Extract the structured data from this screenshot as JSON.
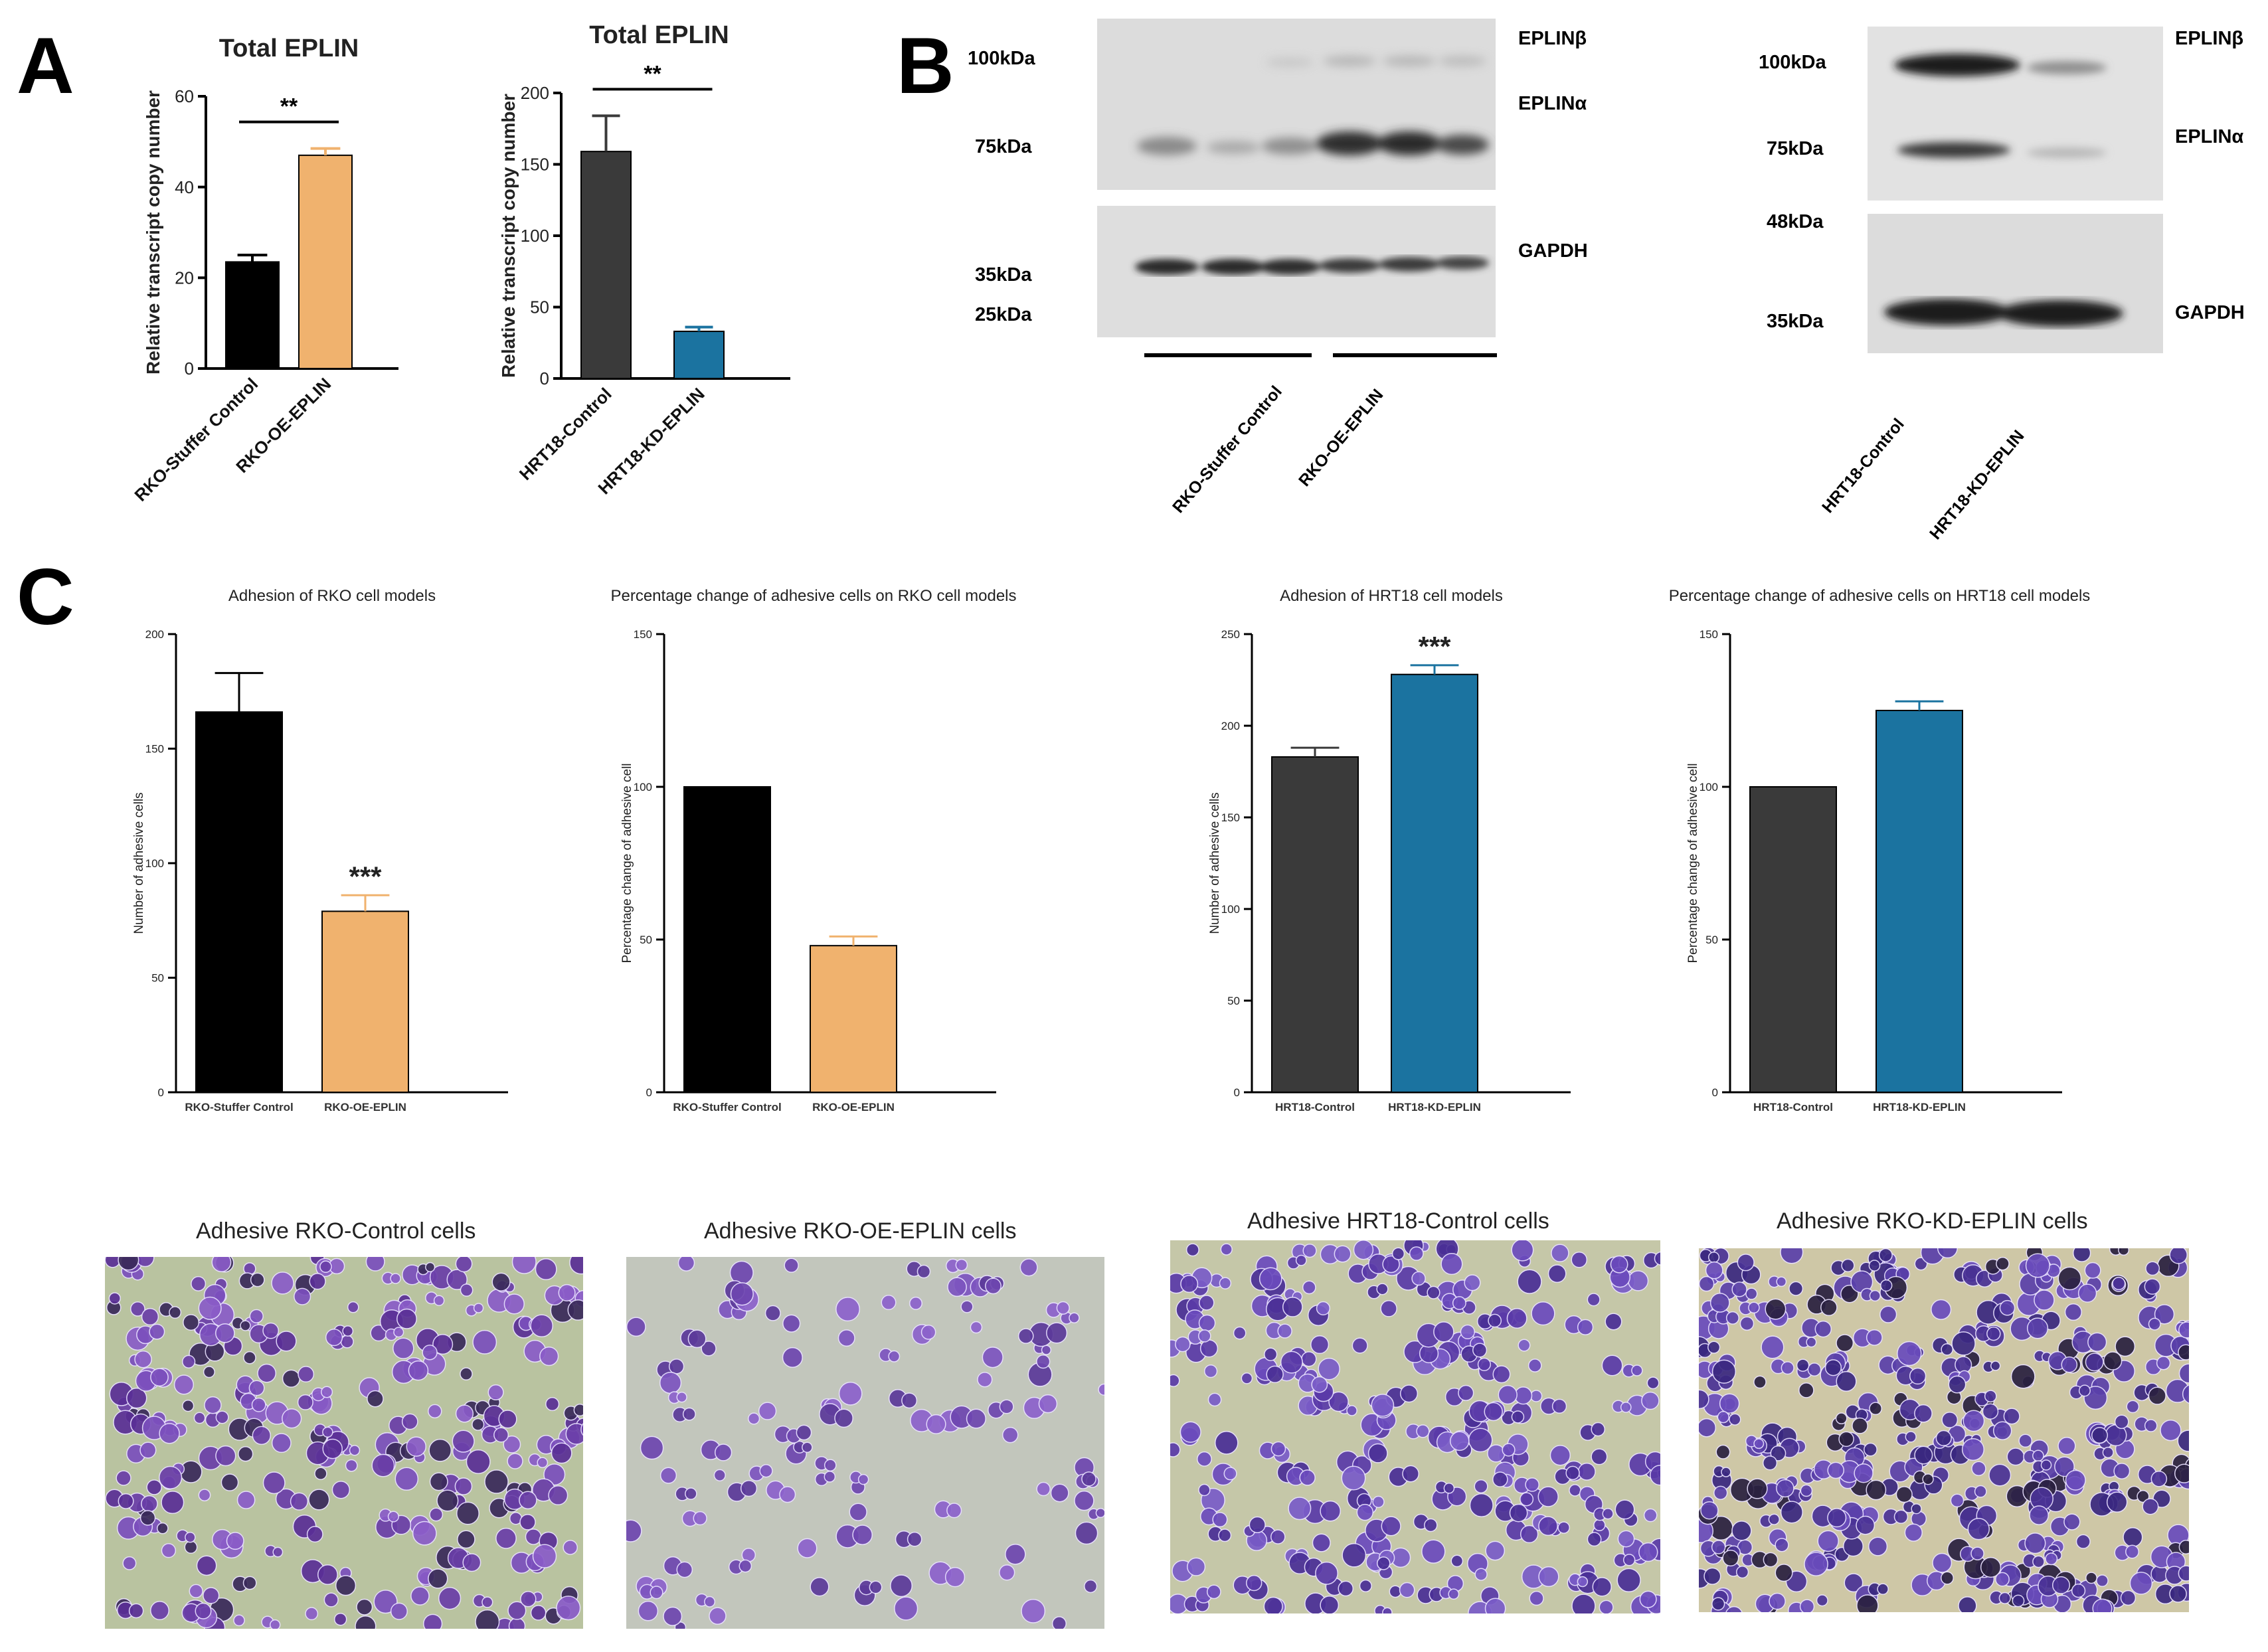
{
  "panels": {
    "a": "A",
    "b": "B",
    "c": "C"
  },
  "colors": {
    "black": "#000000",
    "orange": "#f0b26e",
    "dark_grey": "#3a3a3a",
    "teal": "#1b73a0"
  },
  "chart_data": [
    {
      "id": "a1",
      "type": "bar",
      "title": "Total EPLIN",
      "ylabel": "Relative transcript copy number",
      "categories": [
        "RKO-Stuffer Control",
        "RKO-OE-EPLIN"
      ],
      "values": [
        23.5,
        47
      ],
      "errors": [
        1.5,
        1.5
      ],
      "colors": [
        "#000000",
        "#f0b26e"
      ],
      "ylim": [
        0,
        60
      ],
      "yticks": [
        "0",
        "20",
        "40",
        "60"
      ],
      "significance": "**"
    },
    {
      "id": "a2",
      "type": "bar",
      "title": "Total EPLIN",
      "ylabel": "Relative transcript copy number",
      "categories": [
        "HRT18-Control",
        "HRT18-KD-EPLIN"
      ],
      "values": [
        159,
        33
      ],
      "errors": [
        25,
        3
      ],
      "colors": [
        "#3a3a3a",
        "#1b73a0"
      ],
      "ylim": [
        0,
        200
      ],
      "yticks": [
        "0",
        "50",
        "100",
        "150",
        "200"
      ],
      "significance": "**"
    },
    {
      "id": "c1",
      "type": "bar",
      "title": "Adhesion of RKO cell models",
      "ylabel": "Number of adhesive cells",
      "categories": [
        "RKO-Stuffer Control",
        "RKO-OE-EPLIN"
      ],
      "values": [
        166,
        79
      ],
      "errors": [
        17,
        7
      ],
      "colors": [
        "#000000",
        "#f0b26e"
      ],
      "ylim": [
        0,
        200
      ],
      "yticks": [
        "0",
        "50",
        "100",
        "150",
        "200"
      ],
      "stars": [
        "",
        "***"
      ]
    },
    {
      "id": "c2",
      "type": "bar",
      "title": "Percentage change of adhesive cells on RKO cell models",
      "ylabel": "Percentage change of adhesive cell",
      "categories": [
        "RKO-Stuffer Control",
        "RKO-OE-EPLIN"
      ],
      "values": [
        100,
        48
      ],
      "errors": [
        0,
        3
      ],
      "colors": [
        "#000000",
        "#f0b26e"
      ],
      "ylim": [
        0,
        150
      ],
      "yticks": [
        "0",
        "50",
        "100",
        "150"
      ],
      "stars": [
        "",
        ""
      ]
    },
    {
      "id": "c3",
      "type": "bar",
      "title": "Adhesion of HRT18 cell models",
      "ylabel": "Number of adhesive cells",
      "categories": [
        "HRT18-Control",
        "HRT18-KD-EPLIN"
      ],
      "values": [
        183,
        228
      ],
      "errors": [
        5,
        5
      ],
      "colors": [
        "#3a3a3a",
        "#1b73a0"
      ],
      "ylim": [
        0,
        250
      ],
      "yticks": [
        "0",
        "50",
        "100",
        "150",
        "200",
        "250"
      ],
      "stars": [
        "",
        "***"
      ]
    },
    {
      "id": "c4",
      "type": "bar",
      "title": "Percentage change of adhesive cells on HRT18 cell models",
      "ylabel": "Percentage change of adhesive cell",
      "categories": [
        "HRT18-Control",
        "HRT18-KD-EPLIN"
      ],
      "values": [
        100,
        125
      ],
      "errors": [
        0,
        3
      ],
      "colors": [
        "#3a3a3a",
        "#1b73a0"
      ],
      "ylim": [
        0,
        150
      ],
      "yticks": [
        "0",
        "50",
        "100",
        "150"
      ],
      "stars": [
        "",
        ""
      ]
    }
  ],
  "western_blot": {
    "rko": {
      "markers": {
        "m100": "100kDa",
        "m75": "75kDa",
        "m35": "35kDa",
        "m25": "25kDa"
      },
      "bands": {
        "beta": "EPLINβ",
        "alpha": "EPLINα",
        "gapdh": "GAPDH"
      },
      "groups": [
        "RKO-Stuffer Control",
        "RKO-OE-EPLIN"
      ]
    },
    "hrt": {
      "markers": {
        "m100": "100kDa",
        "m75": "75kDa",
        "m48": "48kDa",
        "m35": "35kDa"
      },
      "bands": {
        "beta": "EPLINβ",
        "alpha": "EPLINα",
        "gapdh": "GAPDH"
      },
      "lanes": [
        "HRT18-Control",
        "HRT18-KD-EPLIN"
      ]
    }
  },
  "photos": [
    "Adhesive RKO-Control cells",
    "Adhesive RKO-OE-EPLIN cells",
    "Adhesive HRT18-Control cells",
    "Adhesive RKO-KD-EPLIN cells"
  ]
}
